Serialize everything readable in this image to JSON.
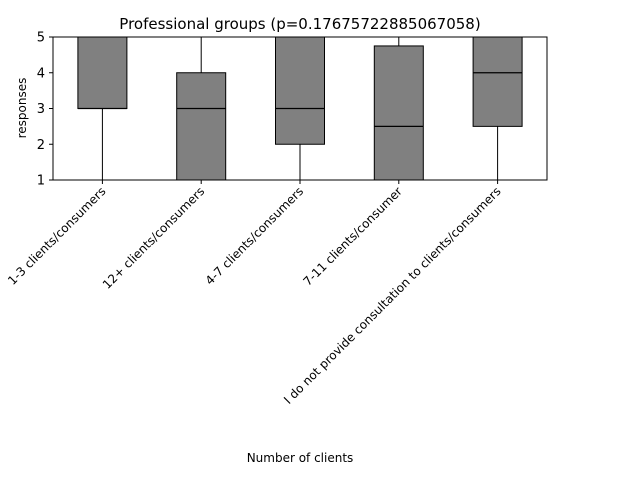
{
  "chart_data": {
    "type": "box",
    "title": "Professional groups (p=0.17675722885067058)",
    "xlabel": "Number of clients",
    "ylabel": "responses",
    "ylim": [
      1,
      5
    ],
    "yticks": [
      1,
      2,
      3,
      4,
      5
    ],
    "ytick_labels": [
      "1",
      "2",
      "3",
      "4",
      "5"
    ],
    "grid": false,
    "box_color": "#808080",
    "edge_color": "#000000",
    "categories": [
      "1-3 clients/consumers",
      "12+ clients/consumers",
      "4-7 clients/consumers",
      "7-11 clients/consumer",
      "I do not provide consultation to clients/consumers"
    ],
    "boxes": [
      {
        "whisker_low": 1,
        "q1": 3,
        "median": 3,
        "q3": 5,
        "whisker_high": 5
      },
      {
        "whisker_low": 1,
        "q1": 1,
        "median": 3,
        "q3": 4,
        "whisker_high": 5
      },
      {
        "whisker_low": 1,
        "q1": 2,
        "median": 3,
        "q3": 5,
        "whisker_high": 5
      },
      {
        "whisker_low": 1,
        "q1": 1,
        "median": 2.5,
        "q3": 4.75,
        "whisker_high": 5
      },
      {
        "whisker_low": 1,
        "q1": 2.5,
        "median": 4,
        "q3": 5,
        "whisker_high": 5
      }
    ]
  }
}
